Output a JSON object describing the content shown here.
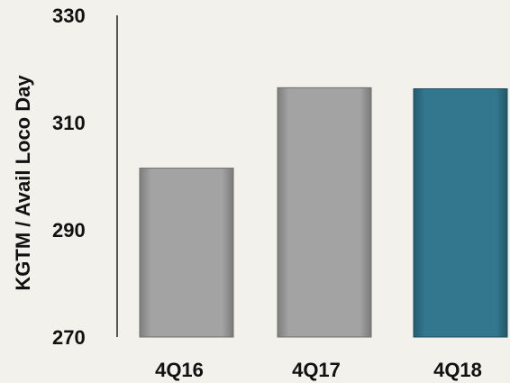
{
  "chart_data": {
    "type": "bar",
    "title": "",
    "xlabel": "",
    "ylabel": "KGTM / Avail Loco Day",
    "categories": [
      "4Q16",
      "4Q17",
      "4Q18"
    ],
    "values": [
      301.5,
      316.5,
      316.3
    ],
    "ylim": [
      270,
      330
    ],
    "yticks": [
      "270",
      "290",
      "310",
      "330"
    ],
    "grid": false,
    "legend": "none",
    "colors": {
      "4Q16": "#9c9c9c",
      "4Q17": "#9c9c9c",
      "4Q18": "#2f7187"
    }
  }
}
